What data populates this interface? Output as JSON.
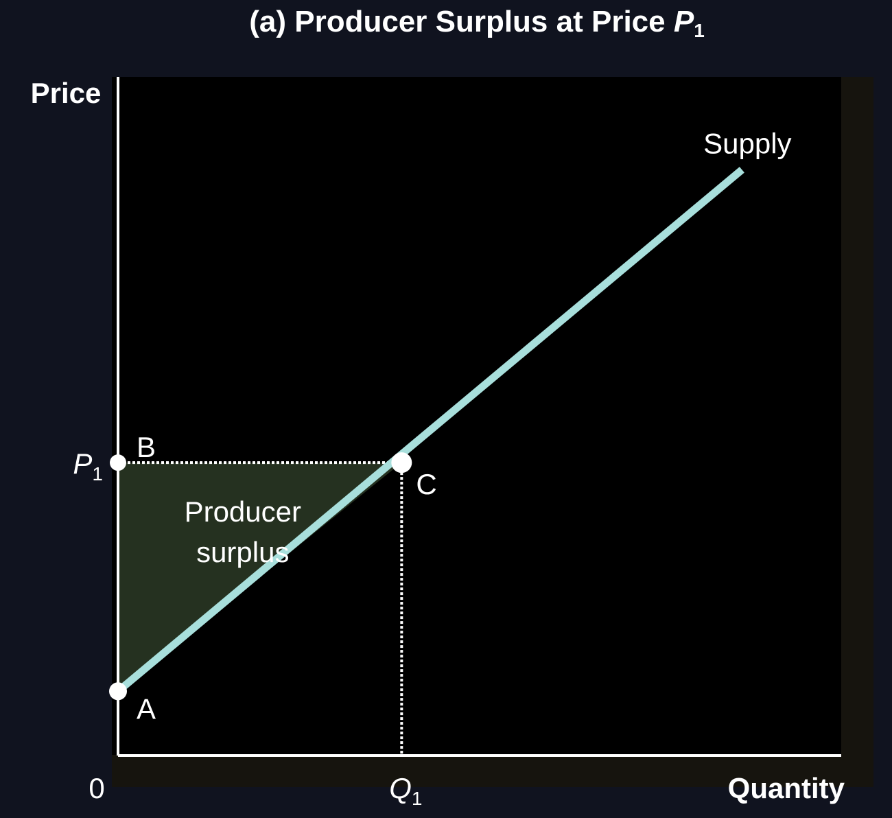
{
  "chart_data": {
    "type": "line",
    "title": {
      "prefix": "(a)  Producer Surplus at Price ",
      "var": "P",
      "sub": "1"
    },
    "xlabel": "Quantity",
    "ylabel": "Price",
    "origin_label": "0",
    "x_ticks": [
      {
        "value": 4,
        "var": "Q",
        "sub": "1"
      }
    ],
    "y_ticks": [
      {
        "value": 4.1,
        "var": "P",
        "sub": "1"
      }
    ],
    "xlim": [
      0,
      10.2
    ],
    "ylim": [
      0,
      9.5
    ],
    "series": [
      {
        "name": "Supply",
        "x": [
          0,
          8.8
        ],
        "y": [
          0.9,
          8.2
        ]
      }
    ],
    "points": [
      {
        "name": "A",
        "x": 0,
        "y": 0.9
      },
      {
        "name": "B",
        "x": 0,
        "y": 4.1
      },
      {
        "name": "C",
        "x": 4,
        "y": 4.1
      }
    ],
    "region": {
      "label_line1": "Producer",
      "label_line2": "surplus",
      "vertices": [
        "A",
        "B",
        "C"
      ]
    },
    "grid": false,
    "colors": {
      "background": "#10131f",
      "plot": "#000000",
      "supply": "#a8dfdc",
      "surplus": "#253120",
      "axis": "#ffffff"
    }
  }
}
